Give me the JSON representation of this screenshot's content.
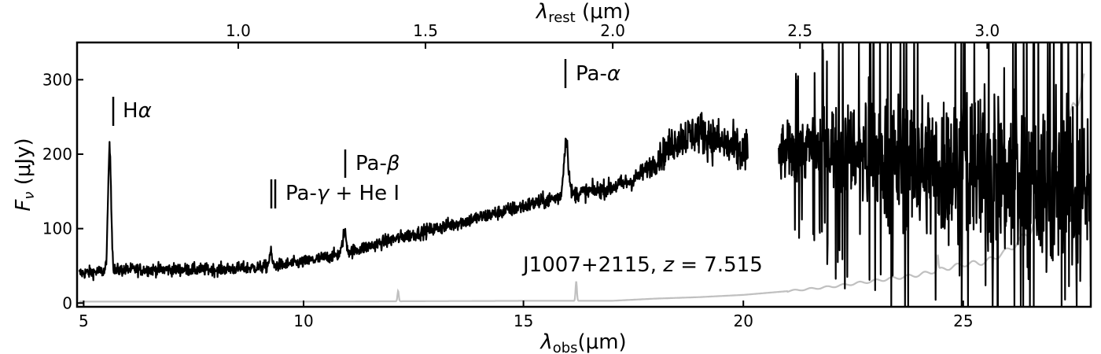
{
  "chart_data": {
    "type": "line",
    "x_label": "λobs(μm)",
    "x_label_main": "λ",
    "x_label_sub": "obs",
    "x_label_unit": "(μm)",
    "y_label": "Fν (μJy)",
    "y_label_main": "F",
    "y_label_sub": "ν",
    "y_label_unit": " (μJy)",
    "x2_label": "λrest (μm)",
    "x2_label_main": "λ",
    "x2_label_sub": "rest",
    "x2_label_unit": " (μm)",
    "xlim": [
      4.85,
      27.9
    ],
    "ylim": [
      -5,
      350
    ],
    "redshift": 7.515,
    "x_ticks": [
      5,
      10,
      15,
      20,
      25
    ],
    "y_ticks": [
      0,
      100,
      200,
      300
    ],
    "x2_ticks": [
      1.0,
      1.5,
      2.0,
      2.5,
      3.0
    ],
    "x2_tick_labels": [
      "1.0",
      "1.5",
      "2.0",
      "2.5",
      "3.0"
    ],
    "object_label": "J1007+2115, z = 7.515",
    "object_name": "J1007+2115, ",
    "object_z": "z",
    "object_z_value": " = 7.515",
    "lines": [
      {
        "name": "Hα",
        "x": 5.59,
        "label_parts": [
          "H",
          "α"
        ]
      },
      {
        "name": "Pa-β",
        "x": 10.93,
        "label_parts": [
          "Pa-",
          "β"
        ]
      },
      {
        "name": "Pa-γ + He I",
        "x": [
          9.25,
          9.33
        ],
        "label_parts": [
          "Pa-",
          "γ",
          " + He I"
        ]
      },
      {
        "name": "Pa-α",
        "x": 15.97,
        "label_parts": [
          "Pa-",
          "α"
        ]
      }
    ],
    "series": [
      {
        "role": "flux",
        "color": "#000000",
        "anchors_x": [
          4.9,
          5.3,
          6.0,
          7.0,
          8.0,
          9.0,
          10.0,
          11.0,
          12.0,
          13.0,
          14.0,
          15.0,
          16.0,
          17.0,
          17.5,
          18.0,
          18.5,
          19.0,
          19.5,
          20.0,
          20.8,
          21.5,
          22.0,
          23.0,
          24.0,
          25.0,
          26.0,
          27.0,
          27.9
        ],
        "anchors_y": [
          40,
          42,
          45,
          45,
          45,
          48,
          55,
          68,
          85,
          100,
          115,
          130,
          145,
          155,
          165,
          190,
          220,
          230,
          215,
          200,
          200,
          210,
          210,
          200,
          185,
          180,
          170,
          160,
          150
        ],
        "noise_anchors_x": [
          4.9,
          10.0,
          15.0,
          17.8,
          18.4,
          20.0,
          21.5,
          23.0,
          25.0,
          27.9
        ],
        "noise_anchors_y": [
          10,
          10,
          12,
          15,
          30,
          40,
          50,
          90,
          130,
          160
        ],
        "gaps": [
          [
            20.1,
            20.8
          ]
        ],
        "emission": [
          {
            "x": 5.59,
            "amp": 165,
            "sigma": 0.035
          },
          {
            "x": 9.25,
            "amp": 18,
            "sigma": 0.03
          },
          {
            "x": 10.93,
            "amp": 28,
            "sigma": 0.04
          },
          {
            "x": 15.97,
            "amp": 75,
            "sigma": 0.05
          }
        ]
      },
      {
        "role": "error",
        "color": "#c0c0c0",
        "anchors_x": [
          4.9,
          10.0,
          15.0,
          17.0,
          18.0,
          19.0,
          20.0,
          21.0,
          22.0,
          23.0,
          24.0,
          24.5,
          25.0,
          25.5,
          26.0,
          26.5,
          27.0,
          27.3,
          27.5,
          27.7
        ],
        "anchors_y": [
          2,
          2,
          3,
          3,
          6,
          8,
          11,
          16,
          22,
          30,
          38,
          45,
          52,
          55,
          70,
          95,
          160,
          200,
          260,
          300
        ],
        "spikes": [
          {
            "x": 12.15,
            "amp": 14
          },
          {
            "x": 16.2,
            "amp": 26
          },
          {
            "x": 24.42,
            "amp": 20
          }
        ]
      }
    ]
  }
}
